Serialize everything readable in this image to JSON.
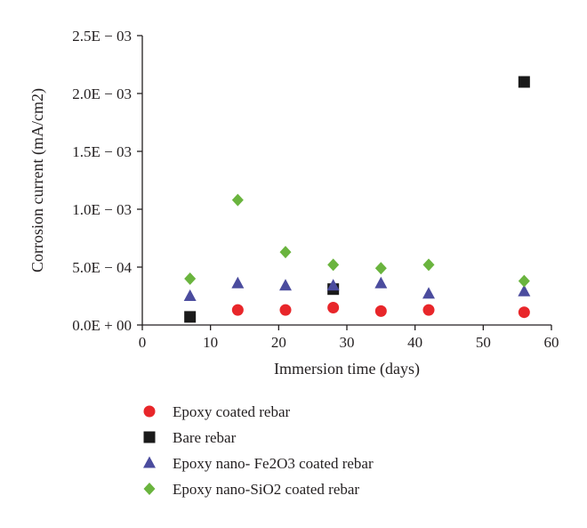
{
  "chart_data": {
    "type": "scatter",
    "xlabel": "Immersion time (days)",
    "ylabel": "Corrosion current (mA/cm2)",
    "xlim": [
      0,
      60
    ],
    "ylim": [
      0,
      0.0025
    ],
    "x_ticks": [
      0,
      10,
      20,
      30,
      40,
      50,
      60
    ],
    "x_tick_labels": [
      "0",
      "10",
      "20",
      "30",
      "40",
      "50",
      "60"
    ],
    "y_ticks": [
      0,
      0.0005,
      0.001,
      0.0015,
      0.002,
      0.0025
    ],
    "y_tick_labels": [
      "0.0E + 00",
      "5.0E − 04",
      "1.0E − 03",
      "1.5E − 03",
      "2.0E − 03",
      "2.5E − 03"
    ],
    "grid": false,
    "legend_position": "bottom",
    "series": [
      {
        "name": "Epoxy coated rebar",
        "marker": "circle",
        "color": "#e8262a",
        "x": [
          14,
          21,
          28,
          35,
          42,
          56
        ],
        "y": [
          0.00013,
          0.00013,
          0.00015,
          0.00012,
          0.00013,
          0.00011
        ]
      },
      {
        "name": "Bare rebar",
        "marker": "square",
        "color": "#1a1a1a",
        "x": [
          7,
          28,
          56
        ],
        "y": [
          7e-05,
          0.00031,
          0.0021
        ]
      },
      {
        "name": "Epoxy nano- Fe2O3 coated rebar",
        "marker": "triangle",
        "color": "#4b4c9e",
        "x": [
          7,
          14,
          21,
          28,
          35,
          42,
          56
        ],
        "y": [
          0.00025,
          0.00036,
          0.00034,
          0.00034,
          0.00036,
          0.00027,
          0.00029
        ]
      },
      {
        "name": "Epoxy nano-SiO2 coated rebar",
        "marker": "diamond",
        "color": "#6ab43e",
        "x": [
          7,
          14,
          21,
          28,
          35,
          42,
          56
        ],
        "y": [
          0.0004,
          0.00108,
          0.00063,
          0.00052,
          0.00049,
          0.00052,
          0.00038
        ]
      }
    ]
  }
}
